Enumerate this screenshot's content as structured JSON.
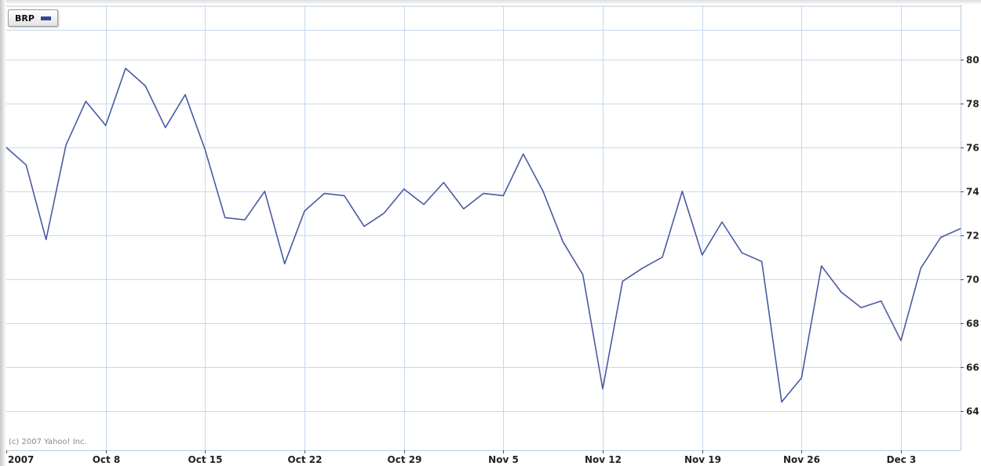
{
  "legend": {
    "symbol": "BRP",
    "swatch_color": "#334699"
  },
  "copyright": "(c) 2007 Yahoo! Inc.",
  "colors": {
    "line": "#4a5aa2",
    "grid": "#c7d8ee",
    "frame": "#b9c9df"
  },
  "chart_data": {
    "type": "line",
    "title": "",
    "xlabel": "",
    "ylabel": "",
    "ylim": [
      62.2,
      82.5
    ],
    "yticks": [
      64,
      66,
      68,
      70,
      72,
      74,
      76,
      78,
      80
    ],
    "x_tick_labels": [
      "2007",
      "Oct 8",
      "Oct 15",
      "Oct 22",
      "Oct 29",
      "Nov 5",
      "Nov 12",
      "Nov 19",
      "Nov 26",
      "Dec 3"
    ],
    "x_tick_positions": [
      0,
      5,
      10,
      15,
      20,
      25,
      30,
      35,
      40,
      45
    ],
    "x_range": [
      0,
      48
    ],
    "grid": true,
    "legend_position": "top-left",
    "series": [
      {
        "name": "BRP",
        "values": [
          76.0,
          75.2,
          71.8,
          76.1,
          78.1,
          77.0,
          79.6,
          78.8,
          76.9,
          78.4,
          75.9,
          72.8,
          72.7,
          74.0,
          70.7,
          73.1,
          73.9,
          73.8,
          72.4,
          73.0,
          74.1,
          73.4,
          74.4,
          73.2,
          73.9,
          73.8,
          75.7,
          74.0,
          71.7,
          70.2,
          65.0,
          69.9,
          70.5,
          71.0,
          74.0,
          71.1,
          72.6,
          71.2,
          70.8,
          64.4,
          65.5,
          70.6,
          69.4,
          68.7,
          69.0,
          67.2,
          70.5,
          71.9,
          72.3
        ]
      }
    ]
  }
}
